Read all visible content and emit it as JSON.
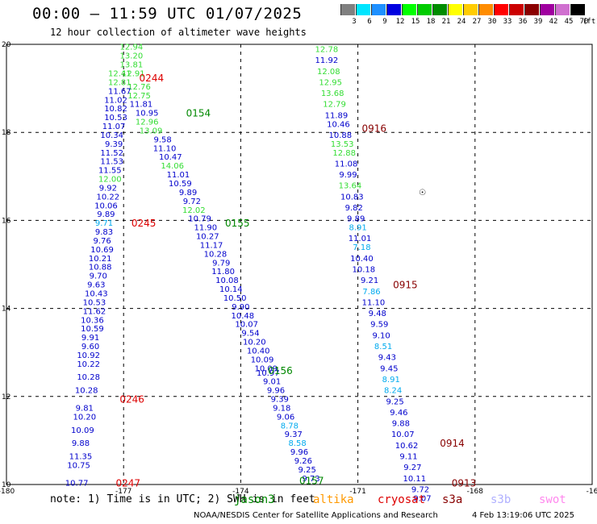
{
  "header": {
    "title": "00:00 – 11:59 UTC 01/07/2025",
    "subtitle": "12 hour collection of altimeter wave heights"
  },
  "legend": {
    "unit": "(ft)",
    "bins": [
      {
        "label": "3",
        "color": "#808080"
      },
      {
        "label": "6",
        "color": "#00e5ff"
      },
      {
        "label": "9",
        "color": "#1e90ff"
      },
      {
        "label": "12",
        "color": "#0000e0"
      },
      {
        "label": "15",
        "color": "#00ff00"
      },
      {
        "label": "18",
        "color": "#00cc00"
      },
      {
        "label": "21",
        "color": "#008c00"
      },
      {
        "label": "24",
        "color": "#ffff00"
      },
      {
        "label": "27",
        "color": "#ffcc00"
      },
      {
        "label": "30",
        "color": "#ff8c00"
      },
      {
        "label": "33",
        "color": "#ff0000"
      },
      {
        "label": "36",
        "color": "#cc0000"
      },
      {
        "label": "39",
        "color": "#8b0000"
      },
      {
        "label": "42",
        "color": "#a000a0"
      },
      {
        "label": "45",
        "color": "#d070d0"
      },
      {
        "label": "70",
        "color": "#000000"
      }
    ]
  },
  "axes": {
    "lon_ticks": [
      "-180",
      "-177",
      "-174",
      "-171",
      "-168",
      "-16"
    ],
    "lat_ticks": [
      "20",
      "18",
      "16",
      "14",
      "12",
      "10"
    ]
  },
  "passes": [
    {
      "label": "0244",
      "color": "#dd0000",
      "lon": -176.6,
      "lat": 19.25
    },
    {
      "label": "0154",
      "color": "#008800",
      "lon": -175.4,
      "lat": 18.45
    },
    {
      "label": "0916",
      "color": "#880000",
      "lon": -170.9,
      "lat": 18.1
    },
    {
      "label": "0245",
      "color": "#dd0000",
      "lon": -176.8,
      "lat": 15.95
    },
    {
      "label": "0155",
      "color": "#008800",
      "lon": -174.4,
      "lat": 15.95
    },
    {
      "label": "0915",
      "color": "#880000",
      "lon": -170.1,
      "lat": 14.55
    },
    {
      "label": "0156",
      "color": "#008800",
      "lon": -173.3,
      "lat": 12.6
    },
    {
      "label": "0246",
      "color": "#dd0000",
      "lon": -177.1,
      "lat": 11.95
    },
    {
      "label": "0914",
      "color": "#880000",
      "lon": -168.9,
      "lat": 10.95
    },
    {
      "label": "0247",
      "color": "#dd0000",
      "lon": -177.2,
      "lat": 10.05
    },
    {
      "label": "0157",
      "color": "#008800",
      "lon": -172.5,
      "lat": 10.1
    },
    {
      "label": "0913",
      "color": "#880000",
      "lon": -168.6,
      "lat": 10.05
    }
  ],
  "tracks": [
    {
      "name": "A1",
      "readings": [
        {
          "v": "12.94",
          "lon": -176.8,
          "lat": 19.95,
          "c": "#33dd33"
        },
        {
          "v": "13.20",
          "lon": -176.8,
          "lat": 19.75,
          "c": "#33dd33"
        },
        {
          "v": "13.81",
          "lon": -176.8,
          "lat": 19.55,
          "c": "#33dd33"
        },
        {
          "v": "12.91",
          "lon": -176.75,
          "lat": 19.35,
          "c": "#33dd33"
        },
        {
          "v": "12.76",
          "lon": -176.6,
          "lat": 19.05,
          "c": "#33dd33"
        },
        {
          "v": "12.75",
          "lon": -176.6,
          "lat": 18.85,
          "c": "#33dd33"
        },
        {
          "v": "11.81",
          "lon": -176.55,
          "lat": 18.65,
          "c": "#0000cc"
        },
        {
          "v": "10.95",
          "lon": -176.4,
          "lat": 18.45,
          "c": "#0000cc"
        },
        {
          "v": "12.96",
          "lon": -176.4,
          "lat": 18.25,
          "c": "#33dd33"
        },
        {
          "v": "13.09",
          "lon": -176.3,
          "lat": 18.05,
          "c": "#33dd33"
        },
        {
          "v": "9.58",
          "lon": -176.0,
          "lat": 17.85,
          "c": "#0000cc"
        },
        {
          "v": "11.10",
          "lon": -175.95,
          "lat": 17.65,
          "c": "#0000cc"
        },
        {
          "v": "10.47",
          "lon": -175.8,
          "lat": 17.45,
          "c": "#0000cc"
        },
        {
          "v": "14.06",
          "lon": -175.75,
          "lat": 17.25,
          "c": "#33dd33"
        },
        {
          "v": "11.01",
          "lon": -175.6,
          "lat": 17.05,
          "c": "#0000cc"
        },
        {
          "v": "10.59",
          "lon": -175.55,
          "lat": 16.85,
          "c": "#0000cc"
        },
        {
          "v": "9.89",
          "lon": -175.35,
          "lat": 16.65,
          "c": "#0000cc"
        },
        {
          "v": "9.72",
          "lon": -175.25,
          "lat": 16.45,
          "c": "#0000cc"
        },
        {
          "v": "12.02",
          "lon": -175.2,
          "lat": 16.25,
          "c": "#33dd33"
        },
        {
          "v": "10.79",
          "lon": -175.05,
          "lat": 16.05,
          "c": "#0000cc"
        },
        {
          "v": "11.90",
          "lon": -174.9,
          "lat": 15.85,
          "c": "#0000cc"
        },
        {
          "v": "10.27",
          "lon": -174.85,
          "lat": 15.65,
          "c": "#0000cc"
        },
        {
          "v": "11.17",
          "lon": -174.75,
          "lat": 15.45,
          "c": "#0000cc"
        },
        {
          "v": "10.28",
          "lon": -174.65,
          "lat": 15.25,
          "c": "#0000cc"
        },
        {
          "v": "9.79",
          "lon": -174.5,
          "lat": 15.05,
          "c": "#0000cc"
        },
        {
          "v": "11.80",
          "lon": -174.45,
          "lat": 14.85,
          "c": "#0000cc"
        },
        {
          "v": "10.08",
          "lon": -174.35,
          "lat": 14.65,
          "c": "#0000cc"
        },
        {
          "v": "10.14",
          "lon": -174.25,
          "lat": 14.45,
          "c": "#0000cc"
        },
        {
          "v": "10.50",
          "lon": -174.15,
          "lat": 14.25,
          "c": "#0000cc"
        },
        {
          "v": "9.90",
          "lon": -174.0,
          "lat": 14.05,
          "c": "#0000cc"
        },
        {
          "v": "10.48",
          "lon": -173.95,
          "lat": 13.85,
          "c": "#0000cc"
        },
        {
          "v": "10.07",
          "lon": -173.85,
          "lat": 13.65,
          "c": "#0000cc"
        },
        {
          "v": "9.54",
          "lon": -173.75,
          "lat": 13.45,
          "c": "#0000cc"
        },
        {
          "v": "10.20",
          "lon": -173.65,
          "lat": 13.25,
          "c": "#0000cc"
        },
        {
          "v": "10.40",
          "lon": -173.55,
          "lat": 13.05,
          "c": "#0000cc"
        },
        {
          "v": "10.09",
          "lon": -173.45,
          "lat": 12.85,
          "c": "#0000cc"
        },
        {
          "v": "10.09",
          "lon": -173.35,
          "lat": 12.65,
          "c": "#0000cc"
        },
        {
          "v": "10.97",
          "lon": -173.3,
          "lat": 12.55,
          "c": "#0000cc"
        },
        {
          "v": "9.01",
          "lon": -173.2,
          "lat": 12.35,
          "c": "#0000cc"
        },
        {
          "v": "9.96",
          "lon": -173.1,
          "lat": 12.15,
          "c": "#0000cc"
        },
        {
          "v": "9.39",
          "lon": -173.0,
          "lat": 11.95,
          "c": "#0000cc"
        },
        {
          "v": "9.18",
          "lon": -172.95,
          "lat": 11.75,
          "c": "#0000cc"
        },
        {
          "v": "9.06",
          "lon": -172.85,
          "lat": 11.55,
          "c": "#0000cc"
        },
        {
          "v": "8.78",
          "lon": -172.75,
          "lat": 11.35,
          "c": "#00aaee"
        },
        {
          "v": "9.37",
          "lon": -172.65,
          "lat": 11.15,
          "c": "#0000cc"
        },
        {
          "v": "8.58",
          "lon": -172.55,
          "lat": 10.95,
          "c": "#00aaee"
        },
        {
          "v": "9.96",
          "lon": -172.5,
          "lat": 10.75,
          "c": "#0000cc"
        },
        {
          "v": "9.26",
          "lon": -172.4,
          "lat": 10.55,
          "c": "#0000cc"
        },
        {
          "v": "9.25",
          "lon": -172.3,
          "lat": 10.35,
          "c": "#0000cc"
        },
        {
          "v": "9.73",
          "lon": -172.2,
          "lat": 10.15,
          "c": "#0000cc"
        }
      ]
    },
    {
      "name": "A2",
      "readings": [
        {
          "v": "12.41",
          "lon": -177.1,
          "lat": 19.35,
          "c": "#33dd33"
        },
        {
          "v": "12.81",
          "lon": -177.1,
          "lat": 19.15,
          "c": "#33dd33"
        },
        {
          "v": "11.67",
          "lon": -177.1,
          "lat": 18.95,
          "c": "#0000cc"
        },
        {
          "v": "11.02",
          "lon": -177.2,
          "lat": 18.75,
          "c": "#0000cc"
        },
        {
          "v": "10.82",
          "lon": -177.2,
          "lat": 18.55,
          "c": "#0000cc"
        },
        {
          "v": "10.53",
          "lon": -177.2,
          "lat": 18.35,
          "c": "#0000cc"
        },
        {
          "v": "11.07",
          "lon": -177.25,
          "lat": 18.15,
          "c": "#0000cc"
        },
        {
          "v": "10.34",
          "lon": -177.3,
          "lat": 17.95,
          "c": "#0000cc"
        },
        {
          "v": "9.39",
          "lon": -177.25,
          "lat": 17.75,
          "c": "#0000cc"
        },
        {
          "v": "11.52",
          "lon": -177.3,
          "lat": 17.55,
          "c": "#0000cc"
        },
        {
          "v": "11.53",
          "lon": -177.3,
          "lat": 17.35,
          "c": "#0000cc"
        },
        {
          "v": "11.55",
          "lon": -177.35,
          "lat": 17.15,
          "c": "#0000cc"
        },
        {
          "v": "12.00",
          "lon": -177.35,
          "lat": 16.95,
          "c": "#33dd33"
        },
        {
          "v": "9.92",
          "lon": -177.4,
          "lat": 16.75,
          "c": "#0000cc"
        },
        {
          "v": "10.22",
          "lon": -177.4,
          "lat": 16.55,
          "c": "#0000cc"
        },
        {
          "v": "10.06",
          "lon": -177.45,
          "lat": 16.35,
          "c": "#0000cc"
        },
        {
          "v": "9.89",
          "lon": -177.45,
          "lat": 16.15,
          "c": "#0000cc"
        },
        {
          "v": "9.71",
          "lon": -177.5,
          "lat": 15.95,
          "c": "#00aaee"
        },
        {
          "v": "9.83",
          "lon": -177.5,
          "lat": 15.75,
          "c": "#0000cc"
        },
        {
          "v": "9.76",
          "lon": -177.55,
          "lat": 15.55,
          "c": "#0000cc"
        },
        {
          "v": "10.69",
          "lon": -177.55,
          "lat": 15.35,
          "c": "#0000cc"
        },
        {
          "v": "10.21",
          "lon": -177.6,
          "lat": 15.15,
          "c": "#0000cc"
        },
        {
          "v": "10.88",
          "lon": -177.6,
          "lat": 14.95,
          "c": "#0000cc"
        },
        {
          "v": "9.70",
          "lon": -177.65,
          "lat": 14.75,
          "c": "#0000cc"
        },
        {
          "v": "9.63",
          "lon": -177.7,
          "lat": 14.55,
          "c": "#0000cc"
        },
        {
          "v": "10.43",
          "lon": -177.7,
          "lat": 14.35,
          "c": "#0000cc"
        },
        {
          "v": "10.53",
          "lon": -177.75,
          "lat": 14.15,
          "c": "#0000cc"
        },
        {
          "v": "11.62",
          "lon": -177.75,
          "lat": 13.95,
          "c": "#0000cc"
        },
        {
          "v": "10.36",
          "lon": -177.8,
          "lat": 13.75,
          "c": "#0000cc"
        },
        {
          "v": "10.59",
          "lon": -177.8,
          "lat": 13.55,
          "c": "#0000cc"
        },
        {
          "v": "9.91",
          "lon": -177.85,
          "lat": 13.35,
          "c": "#0000cc"
        },
        {
          "v": "9.60",
          "lon": -177.85,
          "lat": 13.15,
          "c": "#0000cc"
        },
        {
          "v": "10.92",
          "lon": -177.9,
          "lat": 12.95,
          "c": "#0000cc"
        },
        {
          "v": "10.22",
          "lon": -177.9,
          "lat": 12.75,
          "c": "#0000cc"
        },
        {
          "v": "10.28",
          "lon": -177.9,
          "lat": 12.45,
          "c": "#0000cc"
        },
        {
          "v": "10.28",
          "lon": -177.95,
          "lat": 12.15,
          "c": "#0000cc"
        },
        {
          "v": "9.81",
          "lon": -178.0,
          "lat": 11.75,
          "c": "#0000cc"
        },
        {
          "v": "10.20",
          "lon": -178.0,
          "lat": 11.55,
          "c": "#0000cc"
        },
        {
          "v": "10.09",
          "lon": -178.05,
          "lat": 11.25,
          "c": "#0000cc"
        },
        {
          "v": "9.88",
          "lon": -178.1,
          "lat": 10.95,
          "c": "#0000cc"
        },
        {
          "v": "11.35",
          "lon": -178.1,
          "lat": 10.65,
          "c": "#0000cc"
        },
        {
          "v": "10.75",
          "lon": -178.15,
          "lat": 10.45,
          "c": "#0000cc"
        },
        {
          "v": "10.77",
          "lon": -178.2,
          "lat": 10.05,
          "c": "#0000cc"
        }
      ]
    },
    {
      "name": "B",
      "readings": [
        {
          "v": "12.78",
          "lon": -171.8,
          "lat": 19.9,
          "c": "#33dd33"
        },
        {
          "v": "11.92",
          "lon": -171.8,
          "lat": 19.65,
          "c": "#0000cc"
        },
        {
          "v": "12.08",
          "lon": -171.75,
          "lat": 19.4,
          "c": "#33dd33"
        },
        {
          "v": "12.95",
          "lon": -171.7,
          "lat": 19.15,
          "c": "#33dd33"
        },
        {
          "v": "13.68",
          "lon": -171.65,
          "lat": 18.9,
          "c": "#33dd33"
        },
        {
          "v": "12.79",
          "lon": -171.6,
          "lat": 18.65,
          "c": "#33dd33"
        },
        {
          "v": "11.89",
          "lon": -171.55,
          "lat": 18.4,
          "c": "#0000cc"
        },
        {
          "v": "10.46",
          "lon": -171.5,
          "lat": 18.2,
          "c": "#0000cc"
        },
        {
          "v": "10.88",
          "lon": -171.45,
          "lat": 17.95,
          "c": "#0000cc"
        },
        {
          "v": "13.53",
          "lon": -171.4,
          "lat": 17.75,
          "c": "#33dd33"
        },
        {
          "v": "12.88",
          "lon": -171.35,
          "lat": 17.55,
          "c": "#33dd33"
        },
        {
          "v": "11.08",
          "lon": -171.3,
          "lat": 17.3,
          "c": "#0000cc"
        },
        {
          "v": "9.99",
          "lon": -171.25,
          "lat": 17.05,
          "c": "#0000cc"
        },
        {
          "v": "13.64",
          "lon": -171.2,
          "lat": 16.8,
          "c": "#33dd33"
        },
        {
          "v": "10.83",
          "lon": -171.15,
          "lat": 16.55,
          "c": "#0000cc"
        },
        {
          "v": "9.82",
          "lon": -171.1,
          "lat": 16.3,
          "c": "#0000cc"
        },
        {
          "v": "9.89",
          "lon": -171.05,
          "lat": 16.05,
          "c": "#0000cc"
        },
        {
          "v": "8.91",
          "lon": -171.0,
          "lat": 15.85,
          "c": "#00aaee"
        },
        {
          "v": "11.01",
          "lon": -170.95,
          "lat": 15.6,
          "c": "#0000cc"
        },
        {
          "v": "7.18",
          "lon": -170.9,
          "lat": 15.4,
          "c": "#00aaee"
        },
        {
          "v": "10.40",
          "lon": -170.9,
          "lat": 15.15,
          "c": "#0000cc"
        },
        {
          "v": "10.18",
          "lon": -170.85,
          "lat": 14.9,
          "c": "#0000cc"
        },
        {
          "v": "9.21",
          "lon": -170.7,
          "lat": 14.65,
          "c": "#0000cc"
        },
        {
          "v": "7.86",
          "lon": -170.65,
          "lat": 14.4,
          "c": "#00aaee"
        },
        {
          "v": "11.10",
          "lon": -170.6,
          "lat": 14.15,
          "c": "#0000cc"
        },
        {
          "v": "9.48",
          "lon": -170.5,
          "lat": 13.9,
          "c": "#0000cc"
        },
        {
          "v": "9.59",
          "lon": -170.45,
          "lat": 13.65,
          "c": "#0000cc"
        },
        {
          "v": "9.10",
          "lon": -170.4,
          "lat": 13.4,
          "c": "#0000cc"
        },
        {
          "v": "8.51",
          "lon": -170.35,
          "lat": 13.15,
          "c": "#00aaee"
        },
        {
          "v": "9.43",
          "lon": -170.25,
          "lat": 12.9,
          "c": "#0000cc"
        },
        {
          "v": "9.45",
          "lon": -170.2,
          "lat": 12.65,
          "c": "#0000cc"
        },
        {
          "v": "8.91",
          "lon": -170.15,
          "lat": 12.4,
          "c": "#00aaee"
        },
        {
          "v": "8.24",
          "lon": -170.1,
          "lat": 12.15,
          "c": "#00aaee"
        },
        {
          "v": "9.25",
          "lon": -170.05,
          "lat": 11.9,
          "c": "#0000cc"
        },
        {
          "v": "9.46",
          "lon": -169.95,
          "lat": 11.65,
          "c": "#0000cc"
        },
        {
          "v": "9.88",
          "lon": -169.9,
          "lat": 11.4,
          "c": "#0000cc"
        },
        {
          "v": "10.07",
          "lon": -169.85,
          "lat": 11.15,
          "c": "#0000cc"
        },
        {
          "v": "10.62",
          "lon": -169.75,
          "lat": 10.9,
          "c": "#0000cc"
        },
        {
          "v": "9.11",
          "lon": -169.7,
          "lat": 10.65,
          "c": "#0000cc"
        },
        {
          "v": "9.27",
          "lon": -169.6,
          "lat": 10.4,
          "c": "#0000cc"
        },
        {
          "v": "10.11",
          "lon": -169.55,
          "lat": 10.15,
          "c": "#0000cc"
        },
        {
          "v": "9.72",
          "lon": -169.4,
          "lat": 9.9,
          "c": "#0000cc"
        },
        {
          "v": "9.07",
          "lon": -169.35,
          "lat": 9.7,
          "c": "#0000cc"
        }
      ]
    }
  ],
  "marker": {
    "glyph": "☉",
    "lon": -169.35,
    "lat": 16.65
  },
  "footer": {
    "note": "note: 1) Time is in UTC; 2) SWH is in feet",
    "satellites": [
      {
        "label": "jason3",
        "color": "#008800"
      },
      {
        "label": "altika",
        "color": "#ff9900"
      },
      {
        "label": "cryosat",
        "color": "#dd0000"
      },
      {
        "label": "s3a",
        "color": "#880000"
      },
      {
        "label": "s3b",
        "color": "#b0b0ff"
      },
      {
        "label": "swot",
        "color": "#ff88ee"
      }
    ],
    "credit": "NOAA/NESDIS Center for Satellite Applications and Research",
    "stamp": "4 Feb 13:19:06 UTC 2025"
  }
}
